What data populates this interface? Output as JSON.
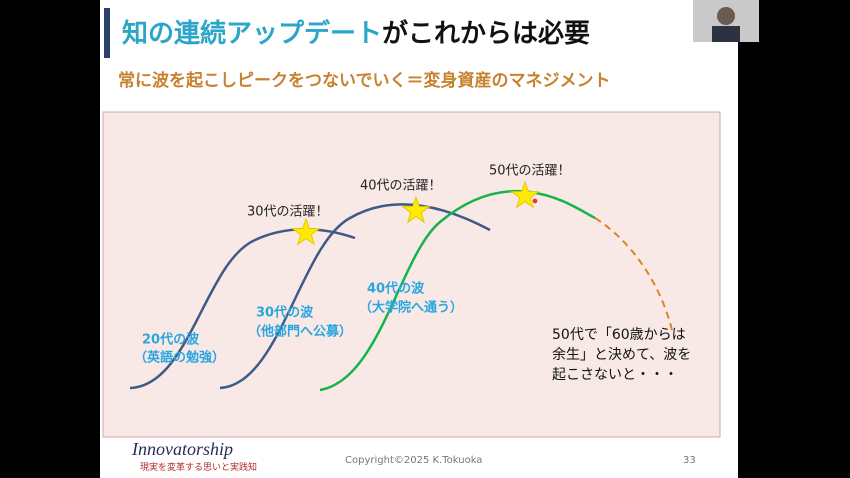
{
  "header": {
    "title_highlight": "知の連続アップデート",
    "title_rest": "がこれからは必要",
    "subtitle": "常に波を起こしピークをつないでいく＝変身資産のマネジメント"
  },
  "diagram": {
    "waves": [
      {
        "label": "20代の波",
        "sublabel": "（英語の勉強）"
      },
      {
        "label": "30代の波",
        "sublabel": "（他部門へ公募）"
      },
      {
        "label": "40代の波",
        "sublabel": "（大学院へ通う）"
      }
    ],
    "peaks": [
      "30代の活躍！",
      "40代の活躍！",
      "50代の活躍！"
    ],
    "note": [
      "50代で「60歳からは",
      "余生」と決めて、波を",
      "起こさないと・・・"
    ]
  },
  "footer": {
    "logo": "Innovatorship",
    "tagline": "現実を変革する思いと実践知",
    "copyright": "Copyright©2025 K.Tokuoka",
    "page": "33"
  }
}
